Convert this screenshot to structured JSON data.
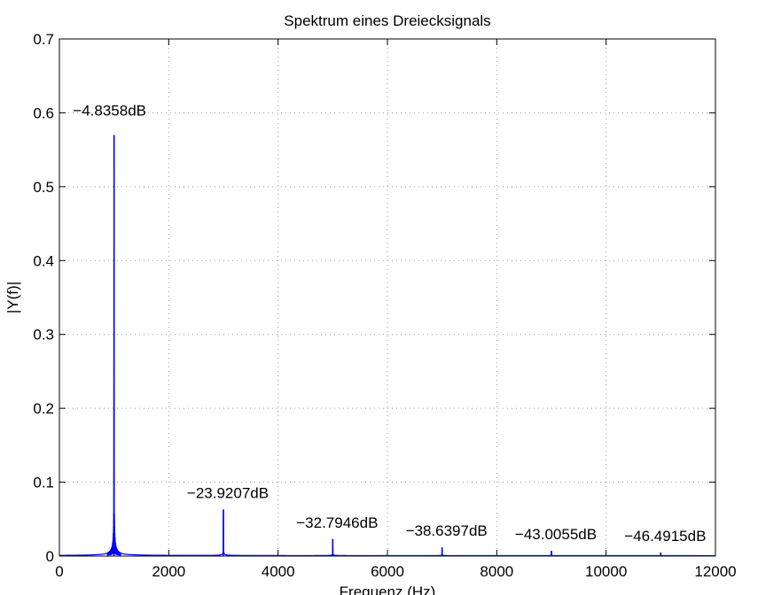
{
  "chart_data": {
    "type": "line",
    "title": "Spektrum eines Dreiecksignals",
    "xlabel": "Frequenz (Hz)",
    "ylabel": "|Y(f)|",
    "xlim": [
      0,
      12000
    ],
    "ylim": [
      0,
      0.7
    ],
    "xticks": [
      0,
      2000,
      4000,
      6000,
      8000,
      10000,
      12000
    ],
    "yticks": [
      0,
      0.1,
      0.2,
      0.3,
      0.4,
      0.5,
      0.6,
      0.7
    ],
    "xtick_labels": [
      "0",
      "2000",
      "4000",
      "6000",
      "8000",
      "10000",
      "12000"
    ],
    "ytick_labels": [
      "0",
      "0.1",
      "0.2",
      "0.3",
      "0.4",
      "0.5",
      "0.6",
      "0.7"
    ],
    "grid": true,
    "color": "#0000ff",
    "peaks": [
      {
        "x": 1000,
        "y": 0.57,
        "label": "−4.8358dB"
      },
      {
        "x": 3000,
        "y": 0.063,
        "label": "−23.9207dB"
      },
      {
        "x": 5000,
        "y": 0.023,
        "label": "−32.7946dB"
      },
      {
        "x": 7000,
        "y": 0.0117,
        "label": "−38.6397dB"
      },
      {
        "x": 9000,
        "y": 0.0071,
        "label": "−43.0055dB"
      },
      {
        "x": 11000,
        "y": 0.0048,
        "label": "−46.4915dB"
      }
    ]
  }
}
